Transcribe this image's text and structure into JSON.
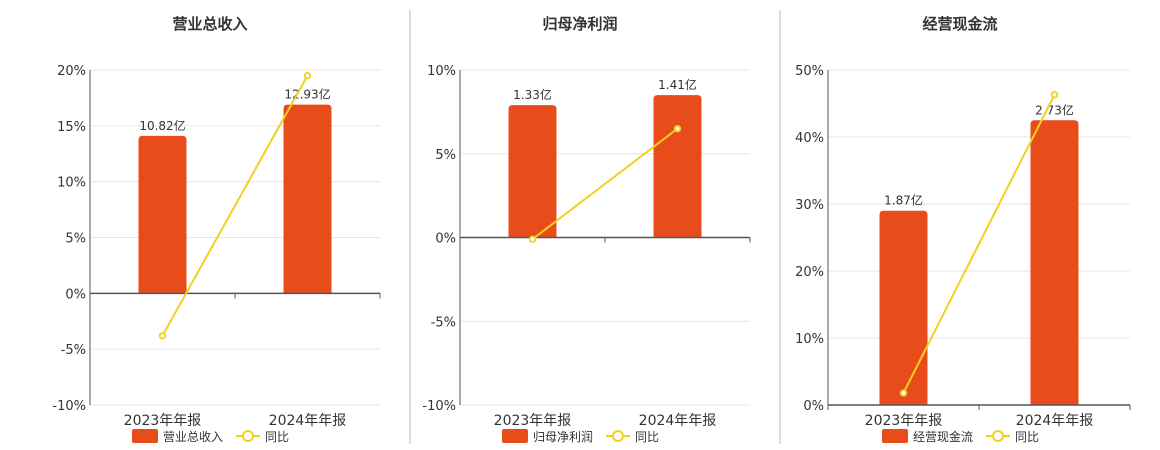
{
  "colors": {
    "bar": "#e84c1b",
    "line": "#f2d01e",
    "marker_fill": "#ffffff",
    "grid": "#e6e6e6",
    "axis": "#555555",
    "separator": "#bbbbbb",
    "text": "#333333"
  },
  "chart_data": [
    {
      "type": "bar",
      "title": "营业总收入",
      "categories": [
        "2023年年报",
        "2024年年报"
      ],
      "ylim": [
        -10,
        20
      ],
      "yticks": [
        -10,
        -5,
        0,
        5,
        10,
        15,
        20
      ],
      "ytick_labels": [
        "-10%",
        "-5%",
        "0%",
        "5%",
        "10%",
        "15%",
        "20%"
      ],
      "grid": true,
      "legend_placement": "bottom",
      "series": [
        {
          "name": "营业总收入",
          "kind": "bar",
          "values": [
            14.1,
            16.9
          ],
          "labels": [
            "10.82亿",
            "12.93亿"
          ]
        },
        {
          "name": "同比",
          "kind": "line",
          "values": [
            -3.8,
            19.5
          ]
        }
      ]
    },
    {
      "type": "bar",
      "title": "归母净利润",
      "categories": [
        "2023年年报",
        "2024年年报"
      ],
      "ylim": [
        -10,
        10
      ],
      "yticks": [
        -10,
        -5,
        0,
        5,
        10
      ],
      "ytick_labels": [
        "-10%",
        "-5%",
        "0%",
        "5%",
        "10%"
      ],
      "grid": true,
      "legend_placement": "bottom",
      "series": [
        {
          "name": "归母净利润",
          "kind": "bar",
          "values": [
            7.9,
            8.5
          ],
          "labels": [
            "1.33亿",
            "1.41亿"
          ]
        },
        {
          "name": "同比",
          "kind": "line",
          "values": [
            -0.1,
            6.5
          ]
        }
      ]
    },
    {
      "type": "bar",
      "title": "经营现金流",
      "categories": [
        "2023年年报",
        "2024年年报"
      ],
      "ylim": [
        0,
        50
      ],
      "yticks": [
        0,
        10,
        20,
        30,
        40,
        50
      ],
      "ytick_labels": [
        "0%",
        "10%",
        "20%",
        "30%",
        "40%",
        "50%"
      ],
      "grid": true,
      "legend_placement": "bottom",
      "series": [
        {
          "name": "经营现金流",
          "kind": "bar",
          "values": [
            29.0,
            42.5
          ],
          "labels": [
            "1.87亿",
            "2.73亿"
          ]
        },
        {
          "name": "同比",
          "kind": "line",
          "values": [
            1.8,
            46.3
          ]
        }
      ]
    }
  ]
}
